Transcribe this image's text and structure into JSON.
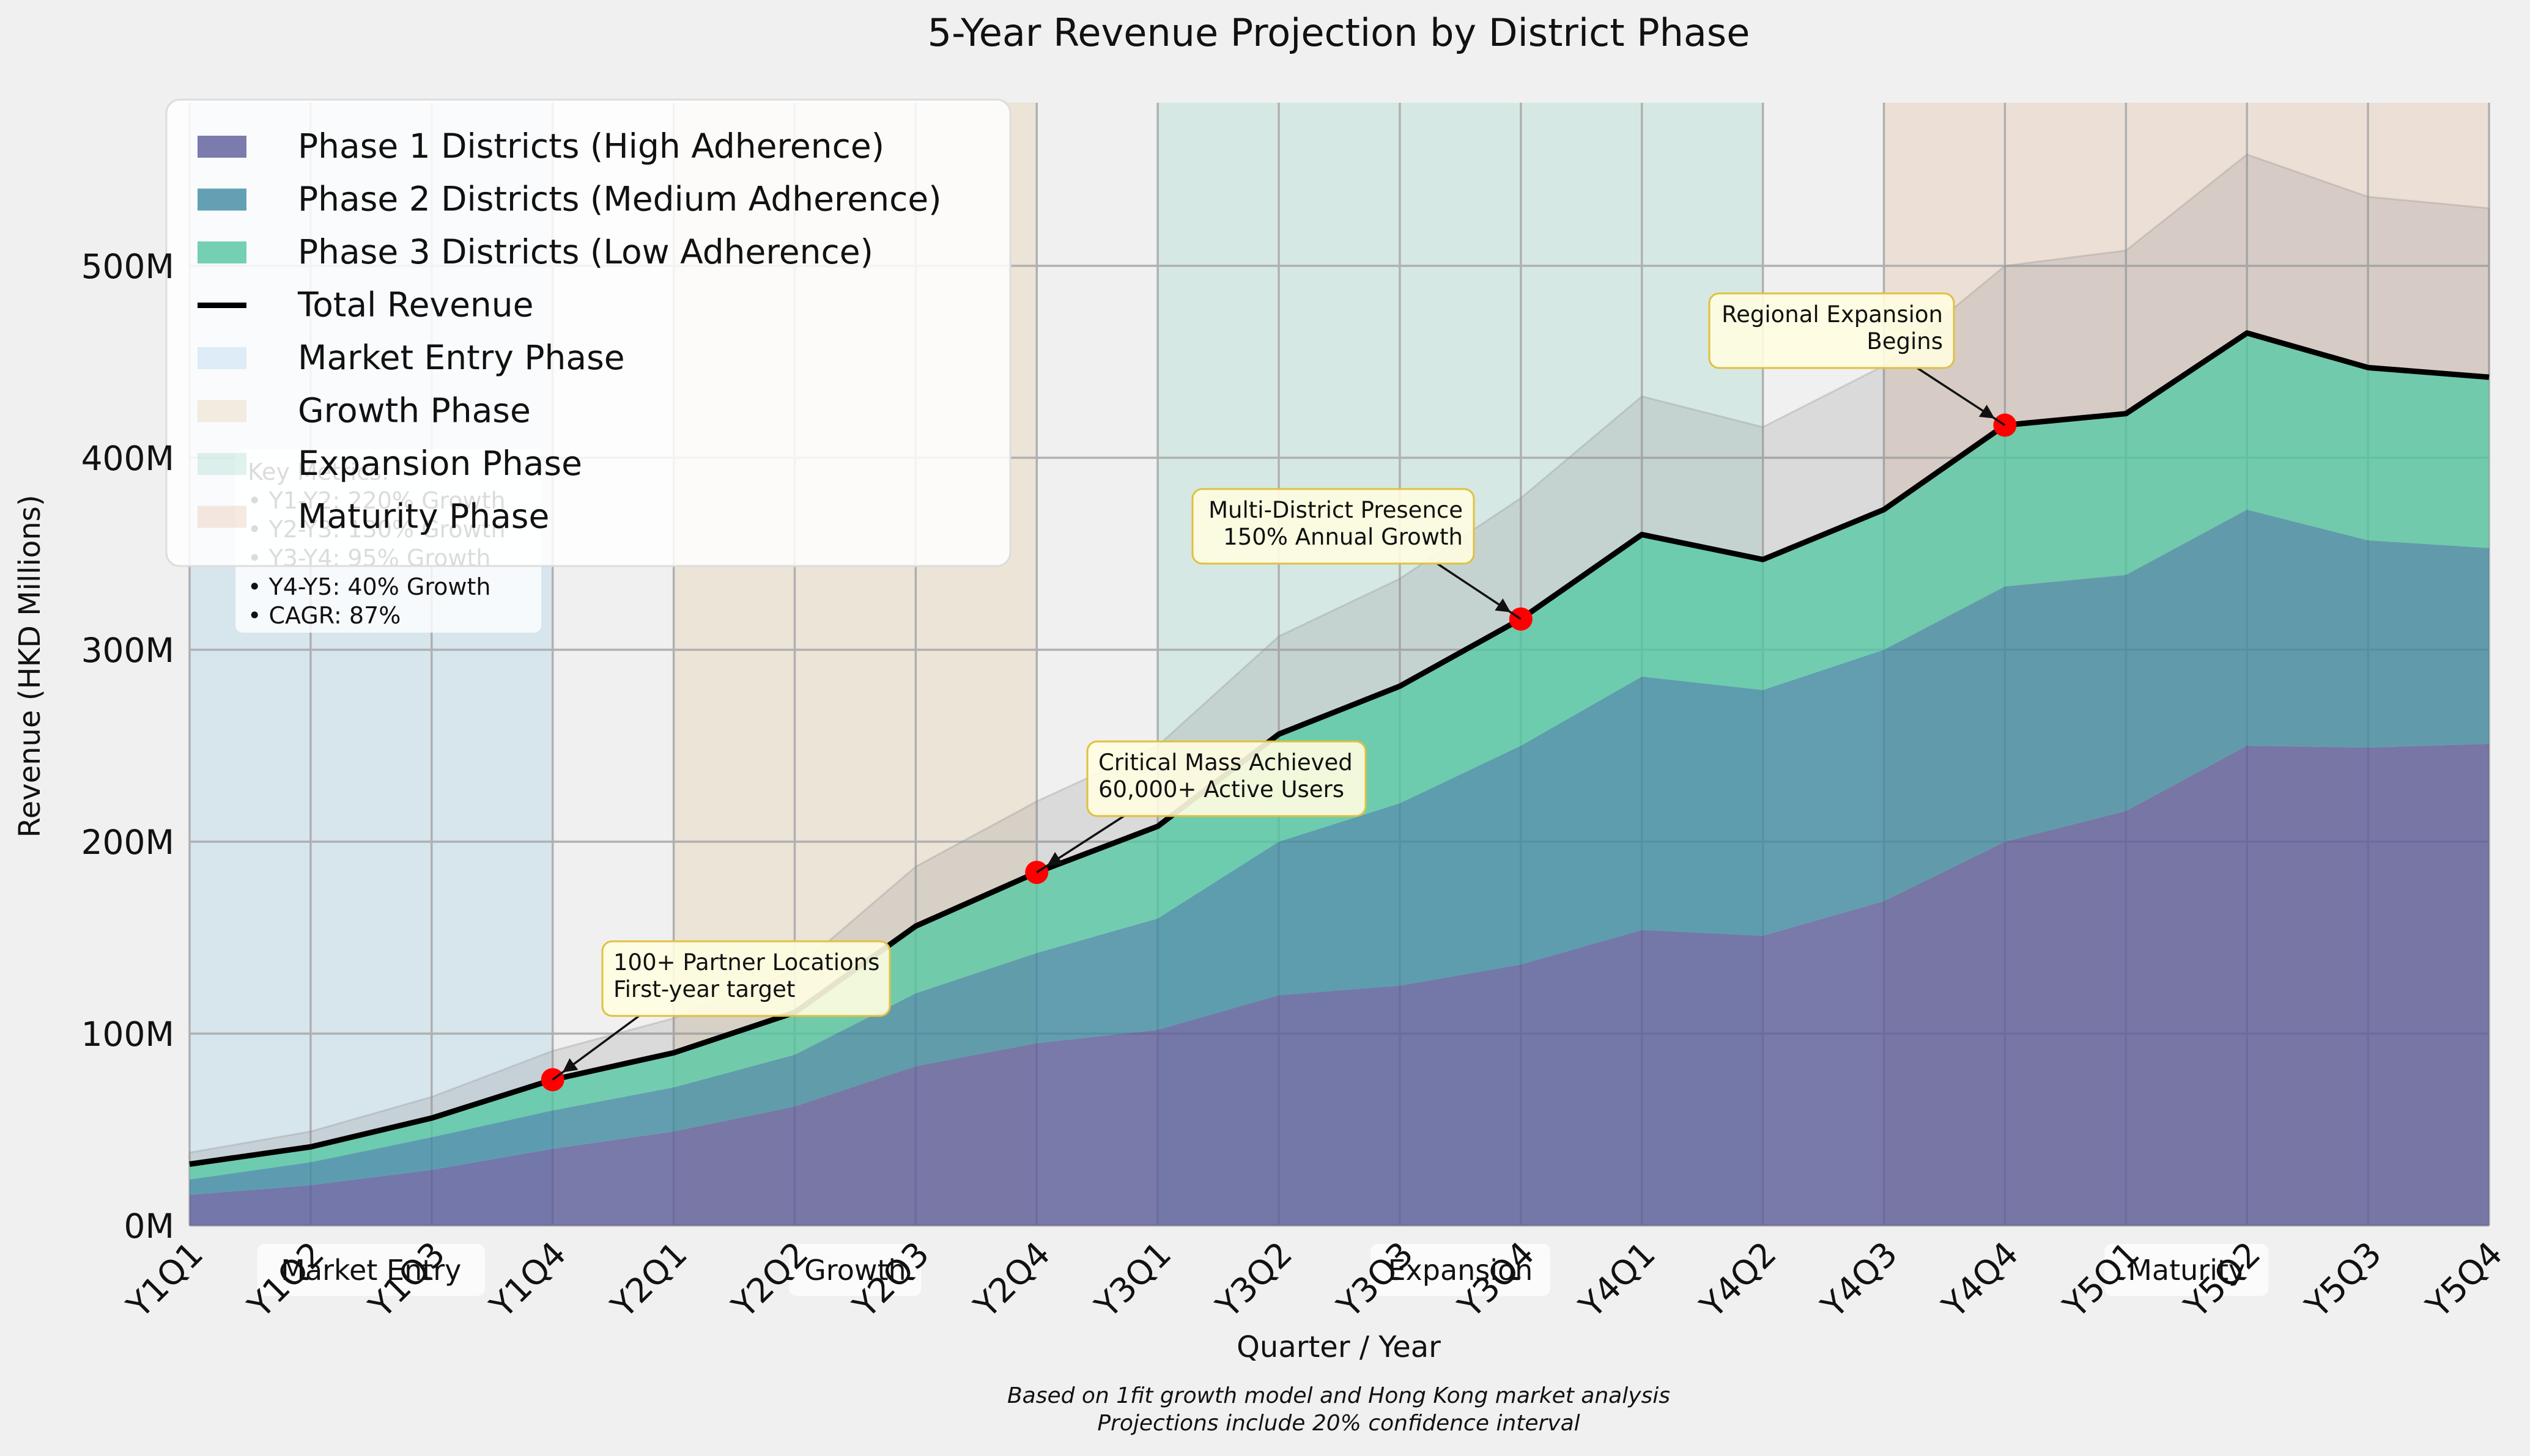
{
  "chart_data": {
    "type": "area",
    "title": "5-Year Revenue Projection by District Phase",
    "xlabel": "Quarter / Year",
    "ylabel": "Revenue (HKD Millions)",
    "ylim": [
      0,
      585
    ],
    "y_ticks": [
      {
        "value": 0,
        "label": "0M"
      },
      {
        "value": 100,
        "label": "100M"
      },
      {
        "value": 200,
        "label": "200M"
      },
      {
        "value": 300,
        "label": "300M"
      },
      {
        "value": 400,
        "label": "400M"
      },
      {
        "value": 500,
        "label": "500M"
      }
    ],
    "categories": [
      "Y1Q1",
      "Y1Q2",
      "Y1Q3",
      "Y1Q4",
      "Y2Q1",
      "Y2Q2",
      "Y2Q3",
      "Y2Q4",
      "Y3Q1",
      "Y3Q2",
      "Y3Q3",
      "Y3Q4",
      "Y4Q1",
      "Y4Q2",
      "Y4Q3",
      "Y4Q4",
      "Y5Q1",
      "Y5Q2",
      "Y5Q3",
      "Y5Q4"
    ],
    "stacked": true,
    "series": [
      {
        "name": "Phase 1 Districts (High Adherence)",
        "color": "#5b5b99",
        "values": [
          16,
          21,
          29,
          40,
          49,
          62,
          83,
          95,
          102,
          120,
          125,
          136,
          154,
          151,
          169,
          200,
          216,
          250,
          249,
          251
        ]
      },
      {
        "name": "Phase 2 Districts (Medium Adherence)",
        "color": "#3f8aa0",
        "values": [
          8,
          12,
          17,
          20,
          23,
          27,
          38,
          47,
          58,
          80,
          95,
          114,
          132,
          128,
          131,
          133,
          123,
          123,
          108,
          102
        ]
      },
      {
        "name": "Phase 3 Districts (Low Adherence)",
        "color": "#52c4a0",
        "values": [
          8,
          8,
          10,
          16,
          18,
          22,
          35,
          42,
          48,
          56,
          61,
          66,
          74,
          68,
          73,
          84,
          84,
          92,
          90,
          89
        ]
      }
    ],
    "total": {
      "name": "Total Revenue",
      "color": "#000000",
      "values": [
        32,
        41,
        56,
        76,
        90,
        111,
        156,
        184,
        208,
        256,
        281,
        316,
        360,
        347,
        373,
        417,
        423,
        465,
        447,
        442
      ]
    },
    "confidence_upper": [
      38,
      49,
      67,
      91,
      108,
      133,
      187,
      221,
      250,
      307,
      337,
      379,
      432,
      416,
      448,
      500,
      508,
      558,
      536,
      530
    ],
    "phases": [
      {
        "name": "Market Entry Phase",
        "label": "Market Entry",
        "start": 0,
        "end": 3,
        "color": "#a9d2e8"
      },
      {
        "name": "Growth Phase",
        "label": "Growth",
        "start": 4,
        "end": 7,
        "color": "#e3cfa8"
      },
      {
        "name": "Expansion Phase",
        "label": "Expansion",
        "start": 8,
        "end": 13,
        "color": "#a6dbcd"
      },
      {
        "name": "Maturity Phase",
        "label": "Maturity",
        "start": 14,
        "end": 19,
        "color": "#e6bfa6"
      }
    ],
    "annotations": [
      {
        "index": 3,
        "lines": [
          "100+ Partner Locations",
          "First-year target"
        ]
      },
      {
        "index": 7,
        "lines": [
          "Critical Mass Achieved",
          "60,000+ Active Users"
        ]
      },
      {
        "index": 11,
        "lines": [
          "Multi-District Presence",
          "150% Annual Growth"
        ]
      },
      {
        "index": 15,
        "lines": [
          "Regional Expansion",
          "Begins"
        ]
      }
    ],
    "key_metrics": [
      "Key Metrics:",
      "• Y1-Y2: 220% Growth",
      "• Y2-Y3: 130% Growth",
      "• Y3-Y4: 95% Growth",
      "• Y4-Y5: 40% Growth",
      "• CAGR: 87%"
    ],
    "legend_position": "upper-left",
    "grid": true,
    "footnote": [
      "Based on 1fit growth model and Hong Kong market analysis",
      "Projections include 20% confidence interval"
    ]
  }
}
